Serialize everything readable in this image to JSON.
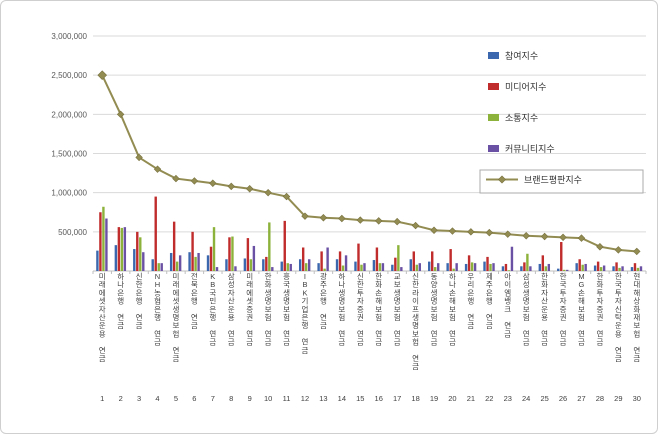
{
  "chart": {
    "title": "",
    "note": ""
  },
  "chart_data": {
    "type": "bar",
    "overlay": "line",
    "categories": [
      "미래에셋자산운용 연금",
      "하나은행 연금",
      "신한은행 연금",
      "NH농협은행 연금",
      "미래에셋생명보험 연금",
      "전북은행 연금",
      "KB국민은행 연금",
      "삼성자산운용 연금",
      "미래에셋증권 연금",
      "한화생명보험 연금",
      "흥국생명보험 연금",
      "IBK기업은행 연금",
      "광주은행 연금",
      "하나생명보험 연금",
      "신한투자증권 연금",
      "한화손해보험 연금",
      "교보생명보험 연금",
      "신한라이프생명보험 연금",
      "동양생명보험 연금",
      "하나손해보험 연금",
      "우리은행 연금",
      "제주은행 연금",
      "아이엠뱅크 연금",
      "삼성생명보험 연금",
      "한화자산운용 연금",
      "한국투자증권 연금",
      "MG손해보험 연금",
      "한화투자증권 연금",
      "한국투자신탁운용 연금",
      "현대해상화재보험 연금"
    ],
    "rank_labels": [
      "1",
      "2",
      "3",
      "4",
      "5",
      "6",
      "7",
      "8",
      "9",
      "10",
      "11",
      "12",
      "13",
      "14",
      "15",
      "16",
      "17",
      "18",
      "19",
      "20",
      "21",
      "22",
      "23",
      "24",
      "25",
      "26",
      "27",
      "28",
      "29",
      "30"
    ],
    "series": [
      {
        "name": "참여지수",
        "color": "#3A67AD",
        "values": [
          260000,
          330000,
          280000,
          150000,
          230000,
          240000,
          200000,
          150000,
          160000,
          150000,
          120000,
          150000,
          100000,
          150000,
          120000,
          140000,
          80000,
          150000,
          120000,
          100000,
          90000,
          120000,
          60000,
          60000,
          90000,
          30000,
          100000,
          70000,
          60000,
          50000
        ]
      },
      {
        "name": "미디어지수",
        "color": "#C02B2B",
        "values": [
          750000,
          560000,
          500000,
          950000,
          630000,
          500000,
          310000,
          430000,
          420000,
          180000,
          640000,
          300000,
          250000,
          250000,
          350000,
          300000,
          170000,
          250000,
          250000,
          280000,
          200000,
          180000,
          90000,
          110000,
          200000,
          370000,
          150000,
          120000,
          110000,
          100000
        ]
      },
      {
        "name": "소통지수",
        "color": "#8DB23B",
        "values": [
          820000,
          550000,
          430000,
          100000,
          120000,
          180000,
          560000,
          440000,
          150000,
          620000,
          100000,
          100000,
          30000,
          70000,
          80000,
          100000,
          330000,
          80000,
          50000,
          30000,
          110000,
          90000,
          10000,
          220000,
          60000,
          15000,
          80000,
          50000,
          40000,
          40000
        ]
      },
      {
        "name": "커뮤니티지수",
        "color": "#6B51A3",
        "values": [
          670000,
          560000,
          240000,
          100000,
          200000,
          230000,
          50000,
          60000,
          320000,
          50000,
          90000,
          150000,
          300000,
          200000,
          100000,
          100000,
          50000,
          100000,
          100000,
          100000,
          100000,
          100000,
          310000,
          60000,
          90000,
          15000,
          90000,
          70000,
          60000,
          60000
        ]
      }
    ],
    "line_series": {
      "name": "브랜드평판지수",
      "color": "#938C52",
      "values": [
        2500000,
        2000000,
        1450000,
        1300000,
        1180000,
        1150000,
        1120000,
        1080000,
        1050000,
        1000000,
        950000,
        700000,
        680000,
        670000,
        650000,
        640000,
        630000,
        580000,
        520000,
        510000,
        500000,
        490000,
        470000,
        450000,
        440000,
        430000,
        420000,
        310000,
        270000,
        250000
      ]
    },
    "ylim": [
      0,
      3000000
    ],
    "yticks": [
      {
        "value": 500000,
        "label": "500,000"
      },
      {
        "value": 1000000,
        "label": "1,000,000"
      },
      {
        "value": 1500000,
        "label": "1,500,000"
      },
      {
        "value": 2000000,
        "label": "2,000,000"
      },
      {
        "value": 2500000,
        "label": "2,500,000"
      },
      {
        "value": 3000000,
        "label": "3,000,000"
      }
    ],
    "grid": true,
    "legend_position": "top-right"
  },
  "colors": {
    "grid": "#DADADA",
    "axis_line": "#BFBFBF",
    "tick_text": "#595959",
    "label_text": "#3F3F3F",
    "legend_box_border": "#ABABAB",
    "frame_border": "#CFCFCF"
  }
}
